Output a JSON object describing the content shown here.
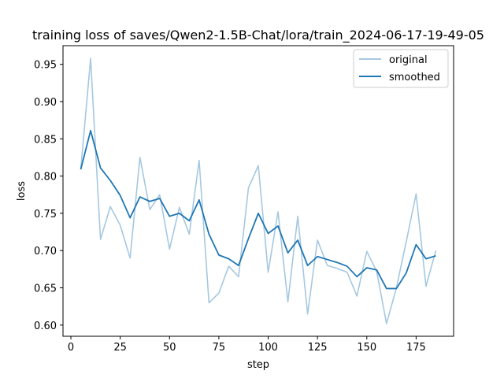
{
  "chart_data": {
    "type": "line",
    "title": "training loss of saves/Qwen2-1.5B-Chat/lora/train_2024-06-17-19-49-05",
    "xlabel": "step",
    "ylabel": "loss",
    "xlim": [
      -4,
      194
    ],
    "ylim": [
      0.585,
      0.975
    ],
    "xticks": [
      0,
      25,
      50,
      75,
      100,
      125,
      150,
      175
    ],
    "yticks": [
      0.6,
      0.65,
      0.7,
      0.75,
      0.8,
      0.85,
      0.9,
      0.95
    ],
    "ytick_labels": [
      "0.60",
      "0.65",
      "0.70",
      "0.75",
      "0.80",
      "0.85",
      "0.90",
      "0.95"
    ],
    "grid": false,
    "legend_position": "top-right",
    "x": [
      5,
      10,
      15,
      20,
      25,
      30,
      35,
      40,
      45,
      50,
      55,
      60,
      65,
      70,
      75,
      80,
      85,
      90,
      95,
      100,
      105,
      110,
      115,
      120,
      125,
      130,
      135,
      140,
      145,
      150,
      155,
      160,
      165,
      170,
      175,
      180,
      185
    ],
    "series": [
      {
        "name": "original",
        "color": "#a6c8e0",
        "values": [
          0.809,
          0.958,
          0.715,
          0.759,
          0.734,
          0.69,
          0.825,
          0.755,
          0.775,
          0.702,
          0.758,
          0.722,
          0.821,
          0.63,
          0.643,
          0.679,
          0.665,
          0.784,
          0.814,
          0.671,
          0.752,
          0.631,
          0.746,
          0.615,
          0.714,
          0.68,
          0.676,
          0.671,
          0.639,
          0.699,
          0.672,
          0.602,
          0.65,
          0.712,
          0.776,
          0.652,
          0.7
        ]
      },
      {
        "name": "smoothed",
        "color": "#1f77b4",
        "values": [
          0.809,
          0.861,
          0.811,
          0.794,
          0.774,
          0.744,
          0.772,
          0.766,
          0.77,
          0.746,
          0.75,
          0.74,
          0.768,
          0.722,
          0.694,
          0.689,
          0.68,
          0.716,
          0.75,
          0.723,
          0.733,
          0.697,
          0.714,
          0.68,
          0.692,
          0.688,
          0.684,
          0.679,
          0.665,
          0.677,
          0.674,
          0.649,
          0.649,
          0.67,
          0.708,
          0.689,
          0.693
        ]
      }
    ]
  }
}
